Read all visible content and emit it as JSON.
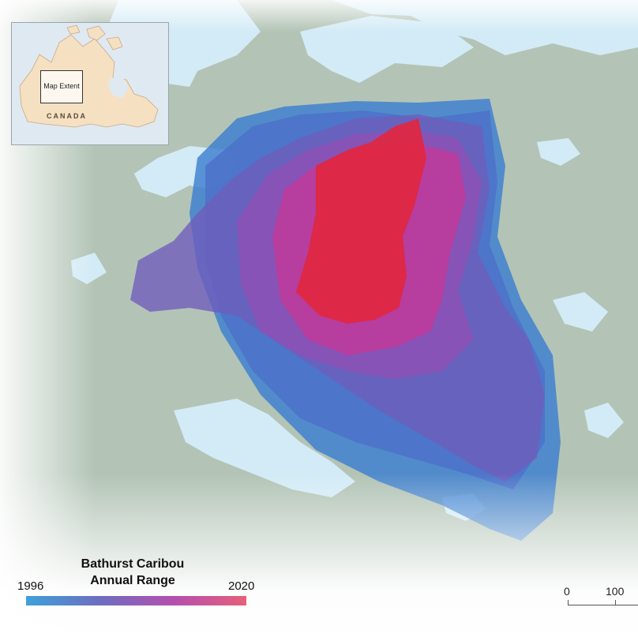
{
  "map": {
    "legend": {
      "title_line1": "Bathurst Caribou",
      "title_line2": "Annual Range",
      "start_year": "1996",
      "end_year": "2020",
      "color_start": "#3ea1d8",
      "color_end": "#e5607a"
    },
    "inset": {
      "extent_label": "Map Extent",
      "country_label": "CANADA"
    },
    "scale": {
      "zero": "0",
      "hundred": "100"
    },
    "colors": {
      "land": "#b3c4b6",
      "water": "#d3ebf6",
      "range_blue": "#3d7fd0",
      "range_purple": "#8f4fb5",
      "range_red": "#e2263d"
    }
  }
}
